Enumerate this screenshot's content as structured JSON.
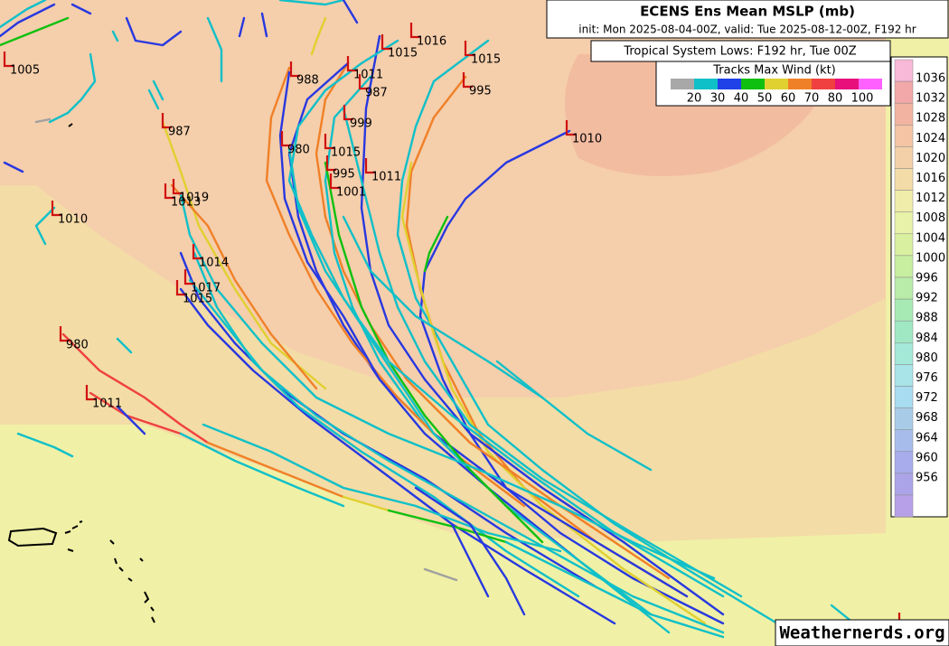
{
  "header": {
    "title": "ECENS Ens Mean MSLP (mb)",
    "subtitle": "init: Mon 2025-08-04-00Z, valid: Tue 2025-08-12-00Z, F192 hr"
  },
  "lows_box": {
    "title": "Tropical System Lows: F192 hr, Tue 00Z"
  },
  "wind_legend": {
    "title": "Tracks Max Wind (kt)",
    "labels": [
      "20",
      "30",
      "40",
      "50",
      "60",
      "70",
      "80",
      "100"
    ]
  },
  "colorbar": {
    "labels": [
      "1036",
      "1032",
      "1028",
      "1024",
      "1020",
      "1016",
      "1012",
      "1008",
      "1004",
      "1000",
      "996",
      "992",
      "988",
      "984",
      "980",
      "976",
      "972",
      "968",
      "964",
      "960",
      "956"
    ]
  },
  "lows": [
    "1005",
    "988",
    "1011",
    "987",
    "1016",
    "1015",
    "1015",
    "995",
    "999",
    "987",
    "980",
    "1015",
    "995",
    "1011",
    "1001",
    "1010",
    "1019",
    "1013",
    "1010",
    "1014",
    "1017",
    "1015",
    "980",
    "1011"
  ],
  "watermark": "Weathernerds.org"
}
